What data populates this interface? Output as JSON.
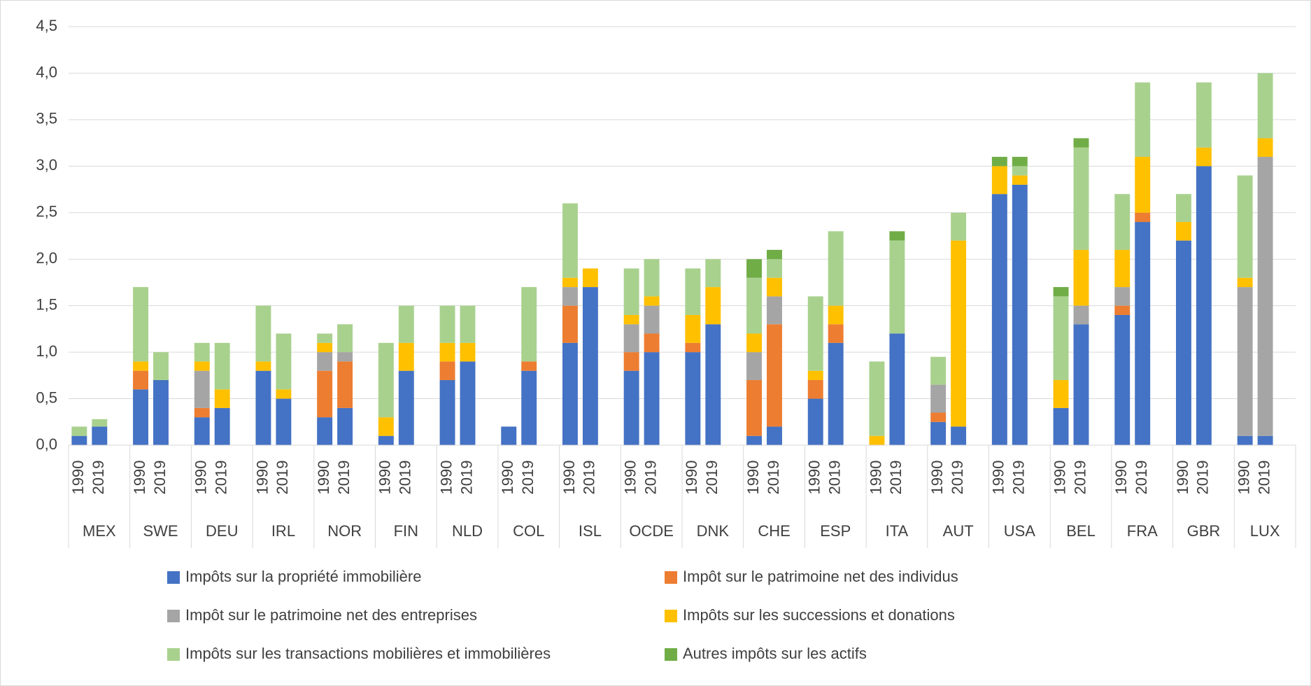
{
  "chart_data": {
    "type": "stacked_bar",
    "groups": [
      "MEX",
      "SWE",
      "DEU",
      "IRL",
      "NOR",
      "FIN",
      "NLD",
      "COL",
      "ISL",
      "OCDE",
      "DNK",
      "CHE",
      "ESP",
      "ITA",
      "AUT",
      "USA",
      "BEL",
      "FRA",
      "GBR",
      "LUX"
    ],
    "categories": [
      "1990",
      "2019",
      "1990",
      "2019",
      "1990",
      "2019",
      "1990",
      "2019",
      "1990",
      "2019",
      "1990",
      "2019",
      "1990",
      "2019",
      "1990",
      "2019",
      "1990",
      "2019",
      "1990",
      "2019",
      "1990",
      "2019",
      "1990",
      "2019",
      "1990",
      "2019",
      "1990",
      "2019",
      "1990",
      "2019",
      "1990",
      "2019",
      "1990",
      "2019",
      "1990",
      "2019",
      "1990",
      "2019",
      "1990",
      "2019"
    ],
    "series": [
      {
        "name": "Impôts sur la propriété immobilière",
        "color": "#4472c4",
        "values": [
          0.1,
          0.2,
          0.6,
          0.7,
          0.3,
          0.4,
          0.8,
          0.5,
          0.3,
          0.4,
          0.1,
          0.8,
          0.7,
          0.9,
          0.2,
          0.8,
          1.1,
          1.7,
          0.8,
          1.0,
          1.0,
          1.3,
          0.1,
          0.2,
          0.5,
          1.1,
          0,
          1.2,
          0.25,
          0.2,
          2.7,
          2.8,
          0.4,
          1.3,
          1.4,
          2.4,
          2.2,
          3.0,
          0.1,
          0.1
        ]
      },
      {
        "name": "Impôt sur le patrimoine net des individus",
        "color": "#ed7d31",
        "values": [
          0,
          0,
          0.2,
          0,
          0.1,
          0,
          0,
          0,
          0.5,
          0.5,
          0,
          0,
          0.2,
          0,
          0,
          0.1,
          0.4,
          0,
          0.2,
          0.2,
          0.1,
          0,
          0.6,
          1.1,
          0.2,
          0.2,
          0,
          0,
          0.1,
          0,
          0,
          0,
          0,
          0,
          0.1,
          0.1,
          0,
          0,
          0,
          0
        ]
      },
      {
        "name": "Impôt sur le patrimoine net des entreprises",
        "color": "#a5a5a5",
        "values": [
          0,
          0,
          0,
          0,
          0.4,
          0,
          0,
          0,
          0.2,
          0.1,
          0,
          0,
          0,
          0,
          0,
          0,
          0.2,
          0,
          0.3,
          0.3,
          0,
          0,
          0.3,
          0.3,
          0,
          0,
          0,
          0,
          0.3,
          0,
          0,
          0,
          0,
          0.2,
          0.2,
          0,
          0,
          0,
          1.6,
          3.0
        ]
      },
      {
        "name": "Impôts sur les successions et donations",
        "color": "#ffc000",
        "values": [
          0,
          0,
          0.1,
          0,
          0.1,
          0.2,
          0.1,
          0.1,
          0.1,
          0,
          0.2,
          0.3,
          0.2,
          0.2,
          0,
          0,
          0.1,
          0.2,
          0.1,
          0.1,
          0.3,
          0.4,
          0.2,
          0.2,
          0.1,
          0.2,
          0.1,
          0,
          0,
          2.0,
          0.3,
          0.1,
          0.3,
          0.6,
          0.4,
          0.6,
          0.2,
          0.2,
          0.1,
          0.2
        ]
      },
      {
        "name": "Impôts sur les transactions mobilières et immobilières",
        "color": "#a9d18e",
        "values": [
          0.1,
          0.08,
          0.8,
          0.3,
          0.2,
          0.5,
          0.6,
          0.6,
          0.1,
          0.3,
          0.8,
          0.4,
          0.4,
          0.4,
          0,
          0.8,
          0.8,
          0,
          0.5,
          0.4,
          0.5,
          0.3,
          0.6,
          0.2,
          0.8,
          0.8,
          0.8,
          1.0,
          0.3,
          0.3,
          0,
          0.1,
          0.9,
          1.1,
          0.6,
          0.8,
          0.3,
          0.7,
          1.1,
          0.7
        ]
      },
      {
        "name": "Autres impôts sur les actifs",
        "color": "#70ad47",
        "values": [
          0,
          0,
          0,
          0,
          0,
          0,
          0,
          0,
          0,
          0,
          0,
          0,
          0,
          0,
          0,
          0,
          0,
          0,
          0,
          0,
          0,
          0,
          0.2,
          0.1,
          0,
          0,
          0,
          0.1,
          0,
          0,
          0.1,
          0.1,
          0.1,
          0.1,
          0,
          0,
          0,
          0,
          0,
          0
        ]
      }
    ],
    "ylim": [
      0,
      4.5
    ],
    "yticks": [
      {
        "value": 0,
        "label": "0,0"
      },
      {
        "value": 0.5,
        "label": "0,5"
      },
      {
        "value": 1,
        "label": "1,0"
      },
      {
        "value": 1.5,
        "label": "1,5"
      },
      {
        "value": 2,
        "label": "2,0"
      },
      {
        "value": 2.5,
        "label": "2,5"
      },
      {
        "value": 3,
        "label": "3,0"
      },
      {
        "value": 3.5,
        "label": "3,5"
      },
      {
        "value": 4,
        "label": "4,0"
      },
      {
        "value": 4.5,
        "label": "4,5"
      }
    ],
    "grid": true
  }
}
